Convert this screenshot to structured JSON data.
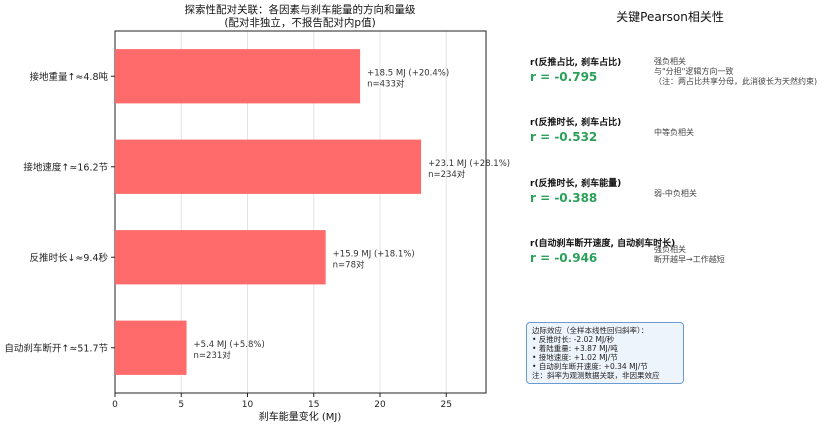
{
  "chart_data": {
    "type": "bar",
    "orientation": "horizontal",
    "title": "探索性配对关联：各因素与刹车能量的方向和量级",
    "subtitle": "(配对非独立，不报告配对内p值)",
    "xlabel": "刹车能量变化 (MJ)",
    "ylabel": "",
    "xlim": [
      0,
      28
    ],
    "xticks": [
      0,
      5,
      10,
      15,
      20,
      25
    ],
    "grid": "vertical",
    "categories": [
      "接地重量↑≈4.8吨",
      "接地速度↑≈16.2节",
      "反推时长↓≈9.4秒",
      "自动刹车断开↑≈51.7节"
    ],
    "values": [
      18.5,
      23.1,
      15.9,
      5.4
    ],
    "annotations": [
      [
        "+18.5 MJ (+20.4%)",
        "n=433对"
      ],
      [
        "+23.1 MJ (+28.1%)",
        "n=234对"
      ],
      [
        "+15.9 MJ (+18.1%)",
        "n=78对"
      ],
      [
        "+5.4 MJ (+5.8%)",
        "n=231对"
      ]
    ],
    "bar_color": "#ff6b6b"
  },
  "right_panel": {
    "title": "关键Pearson相关性",
    "correlations": [
      {
        "label": "r(反推占比, 刹车占比)",
        "value": "r = -0.795",
        "note": [
          "强负相关",
          "与\"分担\"逻辑方向一致",
          "（注：两占比共享分母，此消彼长为天然约束)"
        ]
      },
      {
        "label": "r(反推时长, 刹车占比)",
        "value": "r = -0.532",
        "note": [
          "中等负相关"
        ]
      },
      {
        "label": "r(反推时长, 刹车能量)",
        "value": "r = -0.388",
        "note": [
          "弱-中负相关"
        ]
      },
      {
        "label": "r(自动刹车断开速度, 自动刹车时长)",
        "value": "r = -0.946",
        "note": [
          "强负相关",
          "断开越早→工作越短"
        ]
      }
    ],
    "marginal_box": {
      "title": "边际效应（全样本线性回归斜率）：",
      "lines": [
        "• 反推时长: -2.02 MJ/秒",
        "• 着陆重量: +3.87 MJ/吨",
        "• 接地速度: +1.02 MJ/节",
        "• 自动刹车断开速度: +0.34 MJ/节"
      ],
      "footnote": "注：斜率为观测数据关联，非因果效应"
    },
    "value_color": "#2ca05a"
  }
}
